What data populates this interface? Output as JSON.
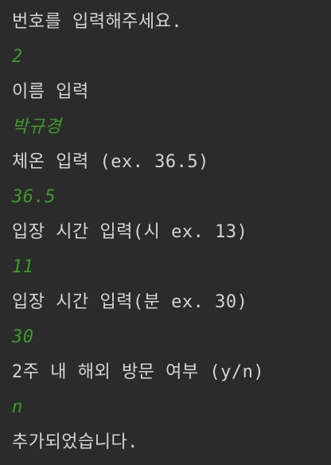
{
  "console": {
    "lines": [
      {
        "kind": "prompt",
        "text": "번호를 입력해주세요."
      },
      {
        "kind": "input",
        "text": "2"
      },
      {
        "kind": "prompt",
        "text": "이름 입력"
      },
      {
        "kind": "input",
        "text": "박규경"
      },
      {
        "kind": "prompt",
        "text": "체온 입력 (ex. 36.5)"
      },
      {
        "kind": "input",
        "text": "36.5"
      },
      {
        "kind": "prompt",
        "text": "입장 시간 입력(시 ex. 13)"
      },
      {
        "kind": "input",
        "text": "11"
      },
      {
        "kind": "prompt",
        "text": "입장 시간 입력(분 ex. 30)"
      },
      {
        "kind": "input",
        "text": "30"
      },
      {
        "kind": "prompt",
        "text": "2주 내 해외 방문 여부 (y/n)"
      },
      {
        "kind": "input",
        "text": "n"
      },
      {
        "kind": "prompt",
        "text": "추가되었습니다."
      }
    ]
  },
  "colors": {
    "background": "#2b2b2b",
    "output_text": "#d4d4d4",
    "user_input_text": "#3d9a2b"
  }
}
